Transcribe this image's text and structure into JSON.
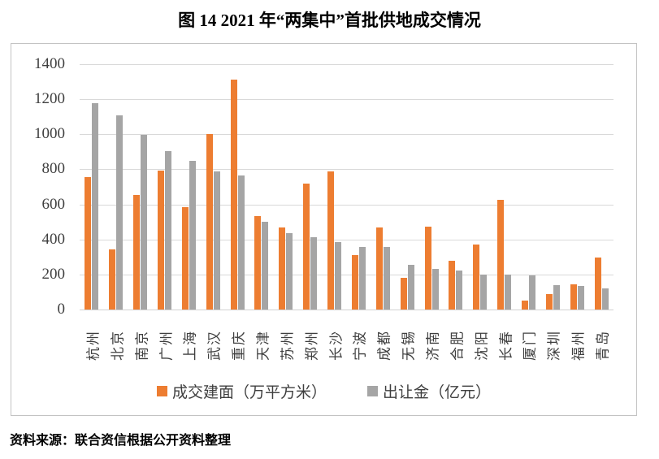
{
  "title": "图 14  2021 年“两集中”首批供地成交情况",
  "source": "资料来源：联合资信根据公开资料整理",
  "colors": {
    "series1": "#ED7D31",
    "series2": "#A5A5A5",
    "gridline": "#D9D9D9",
    "frame_border": "#C3C3C3",
    "axis_text": "#3F3F3F"
  },
  "chart_data": {
    "type": "bar",
    "title": "图 14  2021 年“两集中”首批供地成交情况",
    "categories": [
      "杭州",
      "北京",
      "南京",
      "广州",
      "上海",
      "武汉",
      "重庆",
      "天津",
      "苏州",
      "郑州",
      "长沙",
      "宁波",
      "成都",
      "无锡",
      "济南",
      "合肥",
      "沈阳",
      "长春",
      "厦门",
      "深圳",
      "福州",
      "青岛"
    ],
    "series": [
      {
        "name": "成交建面（万平方米）",
        "color": "#ED7D31",
        "values": [
          755,
          345,
          655,
          795,
          585,
          1000,
          1310,
          535,
          470,
          720,
          790,
          310,
          470,
          180,
          475,
          280,
          370,
          625,
          50,
          90,
          145,
          295
        ]
      },
      {
        "name": "出让金（亿元）",
        "color": "#A5A5A5",
        "values": [
          1180,
          1110,
          995,
          905,
          850,
          790,
          765,
          500,
          435,
          415,
          385,
          355,
          355,
          255,
          230,
          225,
          200,
          200,
          195,
          140,
          135,
          120
        ]
      }
    ],
    "xlabel": "",
    "ylabel": "",
    "ylim": [
      0,
      1400
    ],
    "yticks": [
      0,
      200,
      400,
      600,
      800,
      1000,
      1200,
      1400
    ],
    "grid": true,
    "legend_position": "bottom"
  }
}
